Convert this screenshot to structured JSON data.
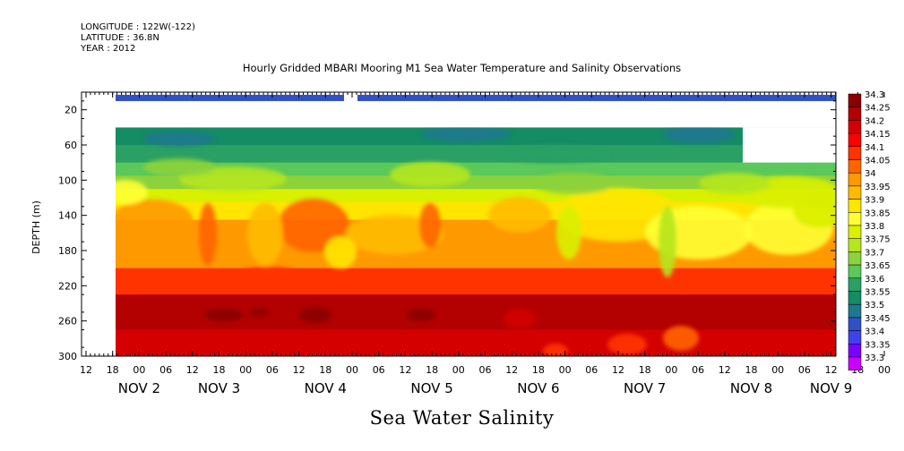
{
  "header": {
    "longitude": "LONGITUDE : 122W(-122)",
    "latitude": "LATITUDE : 36.8N",
    "year": "YEAR : 2012"
  },
  "chart_data": {
    "type": "heatmap",
    "title": "Hourly Gridded MBARI Mooring M1 Sea Water Temperature and Salinity Observations",
    "variable": "Sea Water Salinity",
    "ylabel": "DEPTH (m)",
    "ylim": [
      300,
      0
    ],
    "yticks": [
      20,
      60,
      100,
      140,
      180,
      220,
      260,
      300
    ],
    "x_hour_ticks": [
      "12",
      "18",
      "00",
      "06",
      "12",
      "18",
      "00",
      "06",
      "12",
      "18",
      "00",
      "06",
      "12",
      "18",
      "00",
      "06",
      "12",
      "18",
      "00",
      "06",
      "12",
      "18",
      "00",
      "06",
      "12",
      "18",
      "00",
      "06",
      "12",
      "18",
      "00",
      "06",
      "12"
    ],
    "x_day_labels": [
      {
        "text": "NOV  2",
        "tick": 2
      },
      {
        "text": "NOV  3",
        "tick": 5
      },
      {
        "text": "NOV  4",
        "tick": 9
      },
      {
        "text": "NOV  5",
        "tick": 13
      },
      {
        "text": "NOV  6",
        "tick": 17
      },
      {
        "text": "NOV  7",
        "tick": 21
      },
      {
        "text": "NOV  8",
        "tick": 25
      },
      {
        "text": "NOV  9",
        "tick": 28
      }
    ],
    "colorbar": {
      "levels": [
        "34.3",
        "34.25",
        "34.2",
        "34.15",
        "34.1",
        "34.05",
        "34",
        "33.95",
        "33.9",
        "33.85",
        "33.8",
        "33.75",
        "33.7",
        "33.65",
        "33.6",
        "33.55",
        "33.5",
        "33.45",
        "33.4",
        "33.35",
        "33.3"
      ],
      "colors": [
        "#8b0000",
        "#b30000",
        "#d40000",
        "#ff0000",
        "#ff3300",
        "#ff6400",
        "#ff9900",
        "#ffbb00",
        "#ffe500",
        "#ffff33",
        "#d9f000",
        "#b5e61d",
        "#8cd23c",
        "#5ac85a",
        "#2aa064",
        "#148c64",
        "#207890",
        "#3050c8",
        "#4040f0",
        "#7a00ff",
        "#cc00ff"
      ]
    },
    "depth_profile": [
      {
        "depth_from": 10,
        "depth_to": 40,
        "salinity": "no data"
      },
      {
        "depth_from": 40,
        "depth_to": 60,
        "salinity": 33.55
      },
      {
        "depth_from": 60,
        "depth_to": 80,
        "salinity": 33.6
      },
      {
        "depth_from": 80,
        "depth_to": 95,
        "salinity": 33.65
      },
      {
        "depth_from": 95,
        "depth_to": 110,
        "salinity": 33.7
      },
      {
        "depth_from": 110,
        "depth_to": 125,
        "salinity": 33.8
      },
      {
        "depth_from": 125,
        "depth_to": 145,
        "salinity": 33.9
      },
      {
        "depth_from": 145,
        "depth_to": 200,
        "salinity": 34.0
      },
      {
        "depth_from": 200,
        "depth_to": 230,
        "salinity": 34.1
      },
      {
        "depth_from": 230,
        "depth_to": 270,
        "salinity": 34.25
      },
      {
        "depth_from": 270,
        "depth_to": 300,
        "salinity": 34.2
      }
    ],
    "surface_band": {
      "salinity": 33.45,
      "depth": "~10"
    }
  }
}
